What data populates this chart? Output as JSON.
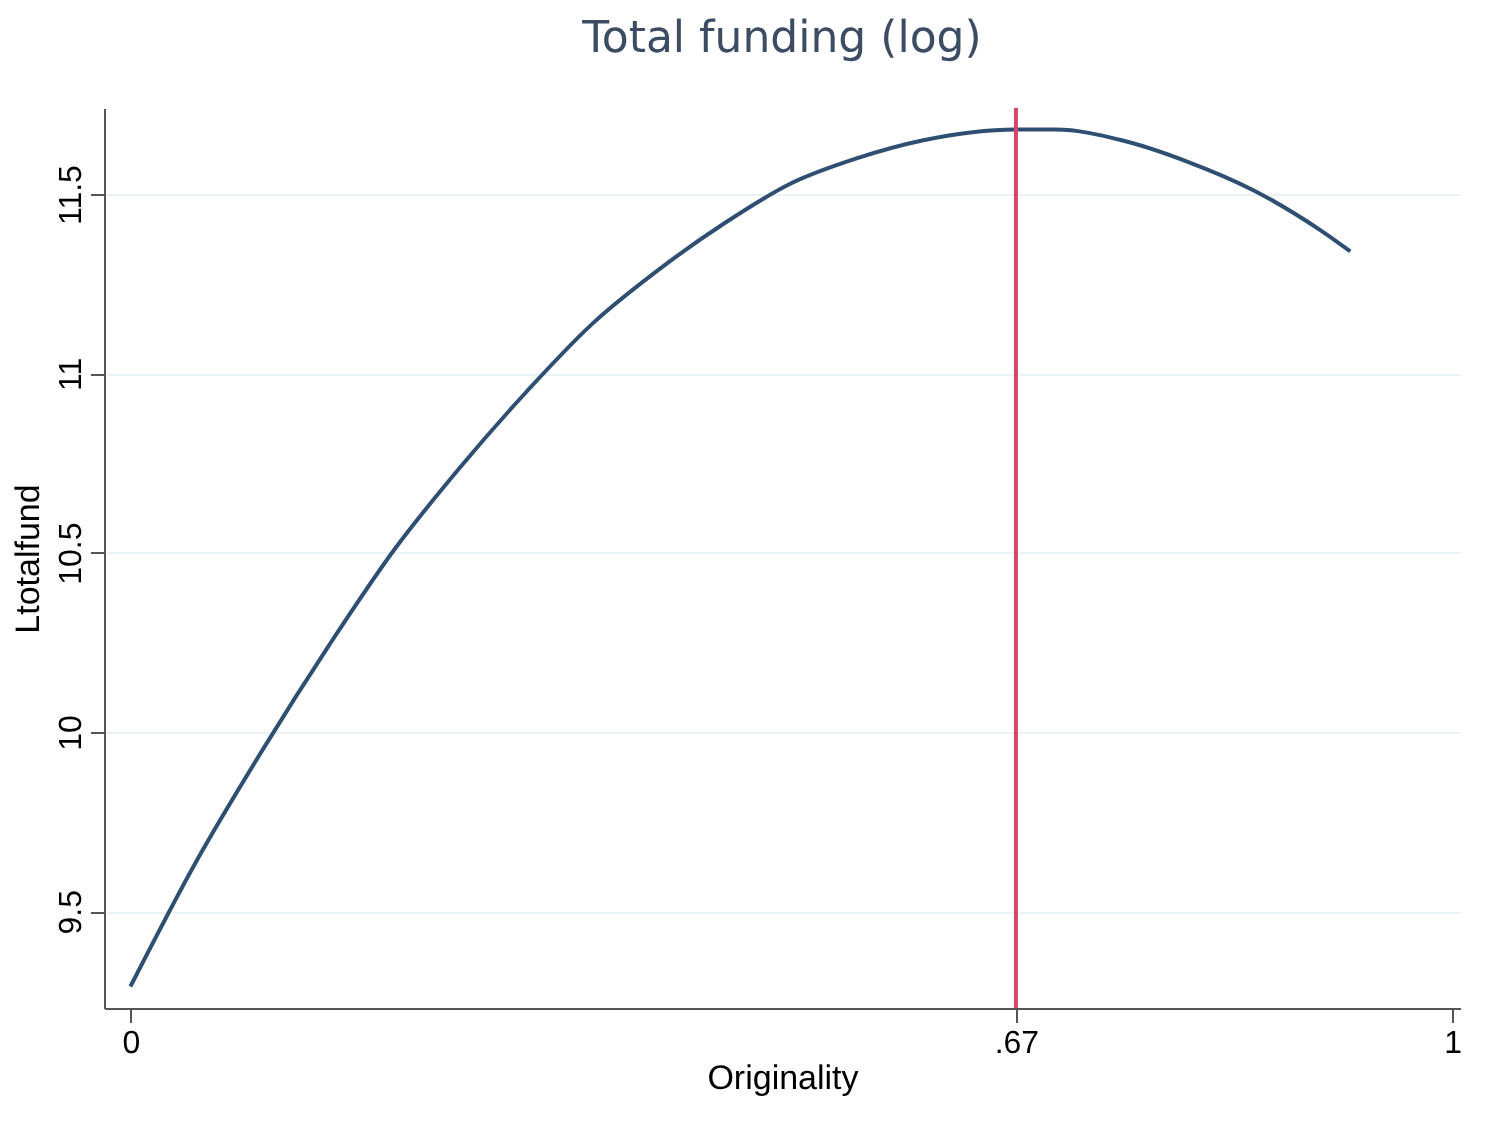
{
  "chart_data": {
    "type": "line",
    "title": "Total funding (log)",
    "xlabel": "Originality",
    "ylabel": "Ltotalfund",
    "x": [
      0,
      0.05,
      0.1,
      0.15,
      0.2,
      0.25,
      0.3,
      0.35,
      0.4,
      0.45,
      0.5,
      0.55,
      0.6,
      0.67,
      0.7,
      0.75,
      0.8,
      0.85,
      0.9,
      0.923
    ],
    "series": [
      {
        "color": "#2e4f72",
        "values": [
          9.29,
          9.64,
          9.95,
          10.24,
          10.51,
          10.74,
          10.95,
          11.14,
          11.29,
          11.42,
          11.53,
          11.6,
          11.65,
          11.68,
          11.68,
          11.65,
          11.59,
          11.51,
          11.4,
          11.34
        ]
      }
    ],
    "xlim": [
      -0.02,
      1.006
    ],
    "ylim": [
      9.23,
      11.74
    ],
    "xticks": [
      0,
      {
        "value": 0.67,
        "label": ".67"
      },
      1
    ],
    "yticks": [
      9.5,
      10,
      10.5,
      11,
      11.5
    ],
    "ref_lines": [
      {
        "axis": "x",
        "value": 0.67,
        "color": "#d6456b"
      }
    ],
    "grid": "y",
    "marker": "none",
    "line_style": "solid"
  }
}
